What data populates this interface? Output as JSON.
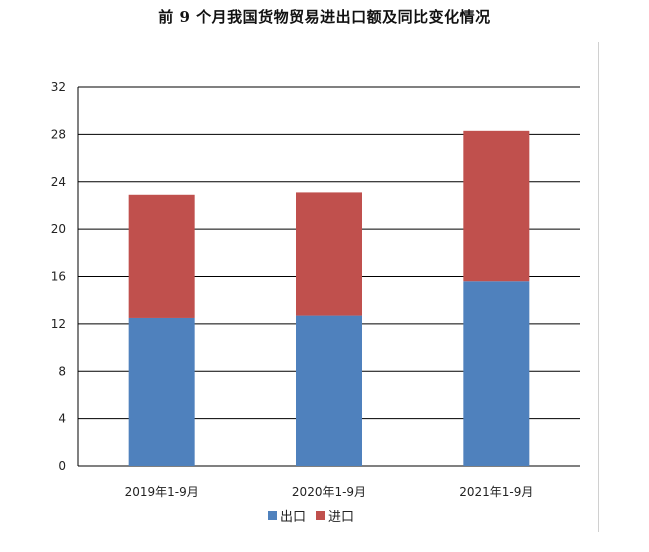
{
  "chart_data": {
    "type": "bar",
    "stacked": true,
    "title": "前 9 个月我国货物贸易进出口额及同比变化情况",
    "categories": [
      "2019年1-9月",
      "2020年1-9月",
      "2021年1-9月"
    ],
    "series": [
      {
        "name": "出口",
        "color": "#4f81bd",
        "values": [
          12.5,
          12.7,
          15.6
        ]
      },
      {
        "name": "进口",
        "color": "#c0504d",
        "values": [
          10.4,
          10.4,
          12.7
        ]
      }
    ],
    "yticks": [
      0,
      4,
      8,
      12,
      16,
      20,
      24,
      28,
      32
    ],
    "ylim": [
      0,
      32
    ],
    "grid": true,
    "legend_position": "bottom"
  }
}
